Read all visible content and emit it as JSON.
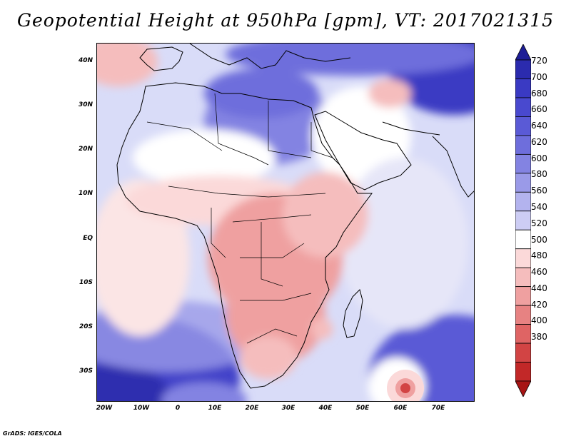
{
  "title": "Geopotential Height at 950hPa [gpm], VT: 2017021315",
  "credit": "GrADS: IGES/COLA",
  "lat_ticks": [
    "40N",
    "30N",
    "20N",
    "10N",
    "EQ",
    "10S",
    "20S",
    "30S"
  ],
  "lon_ticks": [
    "20W",
    "10W",
    "0",
    "10E",
    "20E",
    "30E",
    "40E",
    "50E",
    "60E",
    "70E"
  ],
  "colorbar": {
    "labels": [
      "720",
      "700",
      "680",
      "660",
      "640",
      "620",
      "600",
      "580",
      "560",
      "540",
      "520",
      "500",
      "480",
      "460",
      "440",
      "420",
      "400",
      "380"
    ],
    "colors": [
      "#1d1d96",
      "#2b2bae",
      "#3a3ac3",
      "#4949cf",
      "#5a5ad6",
      "#6e6edc",
      "#8383e2",
      "#9a9ae8",
      "#b3b3ee",
      "#cdcdf4",
      "#ffffff",
      "#fbd9d9",
      "#f5bdbd",
      "#efa0a0",
      "#e78282",
      "#df6464",
      "#d24444",
      "#c22828",
      "#a71414"
    ]
  }
}
